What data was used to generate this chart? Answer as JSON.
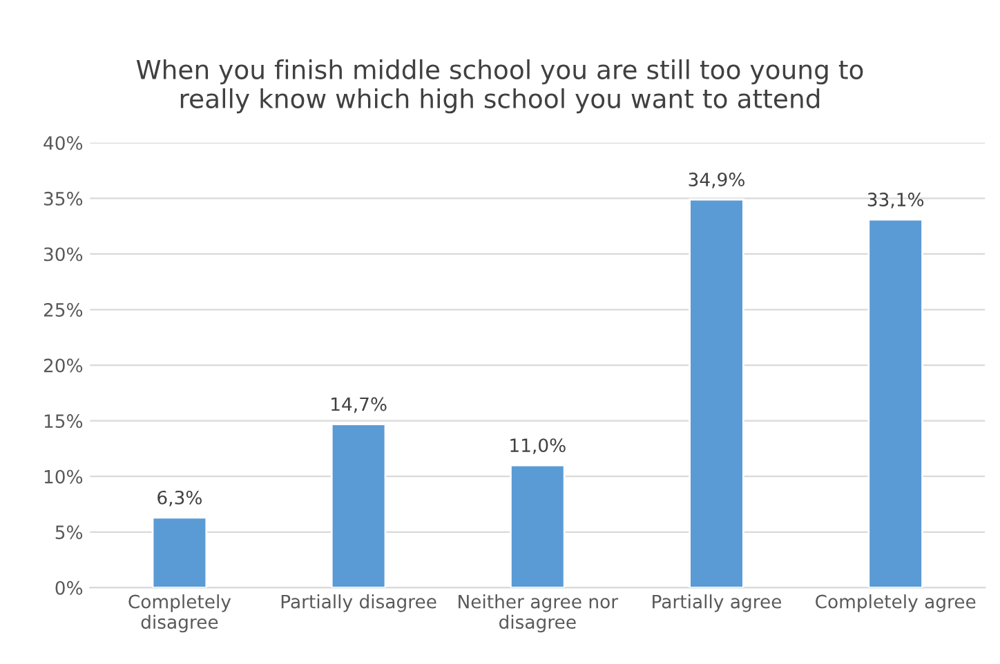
{
  "chart_data": {
    "type": "bar",
    "title": "When you finish middle school you are still too young to really know which high school you want to attend",
    "categories": [
      "Completely disagree",
      "Partially disagree",
      "Neither agree nor disagree",
      "Partially agree",
      "Completely agree"
    ],
    "values": [
      6.3,
      14.7,
      11.0,
      34.9,
      33.1
    ],
    "value_labels": [
      "6,3%",
      "14,7%",
      "11,0%",
      "34,9%",
      "33,1%"
    ],
    "color": "#5b9bd5",
    "ylim": [
      0,
      40
    ],
    "yticks": [
      {
        "value": 0,
        "label": "0%"
      },
      {
        "value": 5,
        "label": "5%"
      },
      {
        "value": 10,
        "label": "10%"
      },
      {
        "value": 15,
        "label": "15%"
      },
      {
        "value": 20,
        "label": "20%"
      },
      {
        "value": 25,
        "label": "25%"
      },
      {
        "value": 30,
        "label": "30%"
      },
      {
        "value": 35,
        "label": "35%"
      },
      {
        "value": 40,
        "label": "40%"
      }
    ],
    "grid": "y",
    "legend": false
  }
}
